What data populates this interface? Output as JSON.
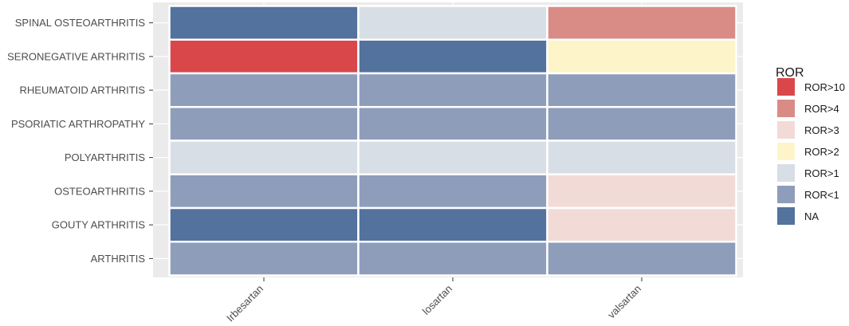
{
  "chart_data": {
    "type": "heatmap",
    "title": "",
    "xlabel": "",
    "ylabel": "",
    "x": [
      "Irbesartan",
      "losartan",
      "valsartan"
    ],
    "y": [
      "SPINAL OSTEOARTHRITIS",
      "SERONEGATIVE ARTHRITIS",
      "RHEUMATOID ARTHRITIS",
      "PSORIATIC ARTHROPATHY",
      "POLYARTHRITIS",
      "OSTEOARTHRITIS",
      "GOUTY ARTHRITIS",
      "ARTHRITIS"
    ],
    "cells": [
      [
        "NA",
        "ROR>1",
        "ROR>4"
      ],
      [
        "ROR>10",
        "NA",
        "ROR>2"
      ],
      [
        "ROR<1",
        "ROR<1",
        "ROR<1"
      ],
      [
        "ROR<1",
        "ROR<1",
        "ROR<1"
      ],
      [
        "ROR>1",
        "ROR>1",
        "ROR>1"
      ],
      [
        "ROR<1",
        "ROR<1",
        "ROR>3"
      ],
      [
        "NA",
        "NA",
        "ROR>3"
      ],
      [
        "ROR<1",
        "ROR<1",
        "ROR<1"
      ]
    ],
    "legend": {
      "title": "ROR",
      "position": "right",
      "items": [
        {
          "label": "ROR>10",
          "color": "#d9474b"
        },
        {
          "label": "ROR>4",
          "color": "#d98c85"
        },
        {
          "label": "ROR>3",
          "color": "#f2dbd6"
        },
        {
          "label": "ROR>2",
          "color": "#fdf5c9"
        },
        {
          "label": "ROR>1",
          "color": "#d8dee5"
        },
        {
          "label": "ROR<1",
          "color": "#8e9dba"
        },
        {
          "label": "NA",
          "color": "#53729d"
        }
      ]
    },
    "panel_background": "#ebebeb",
    "gridline_color": "#ffffff",
    "tile_border_color": "#ffffff"
  }
}
